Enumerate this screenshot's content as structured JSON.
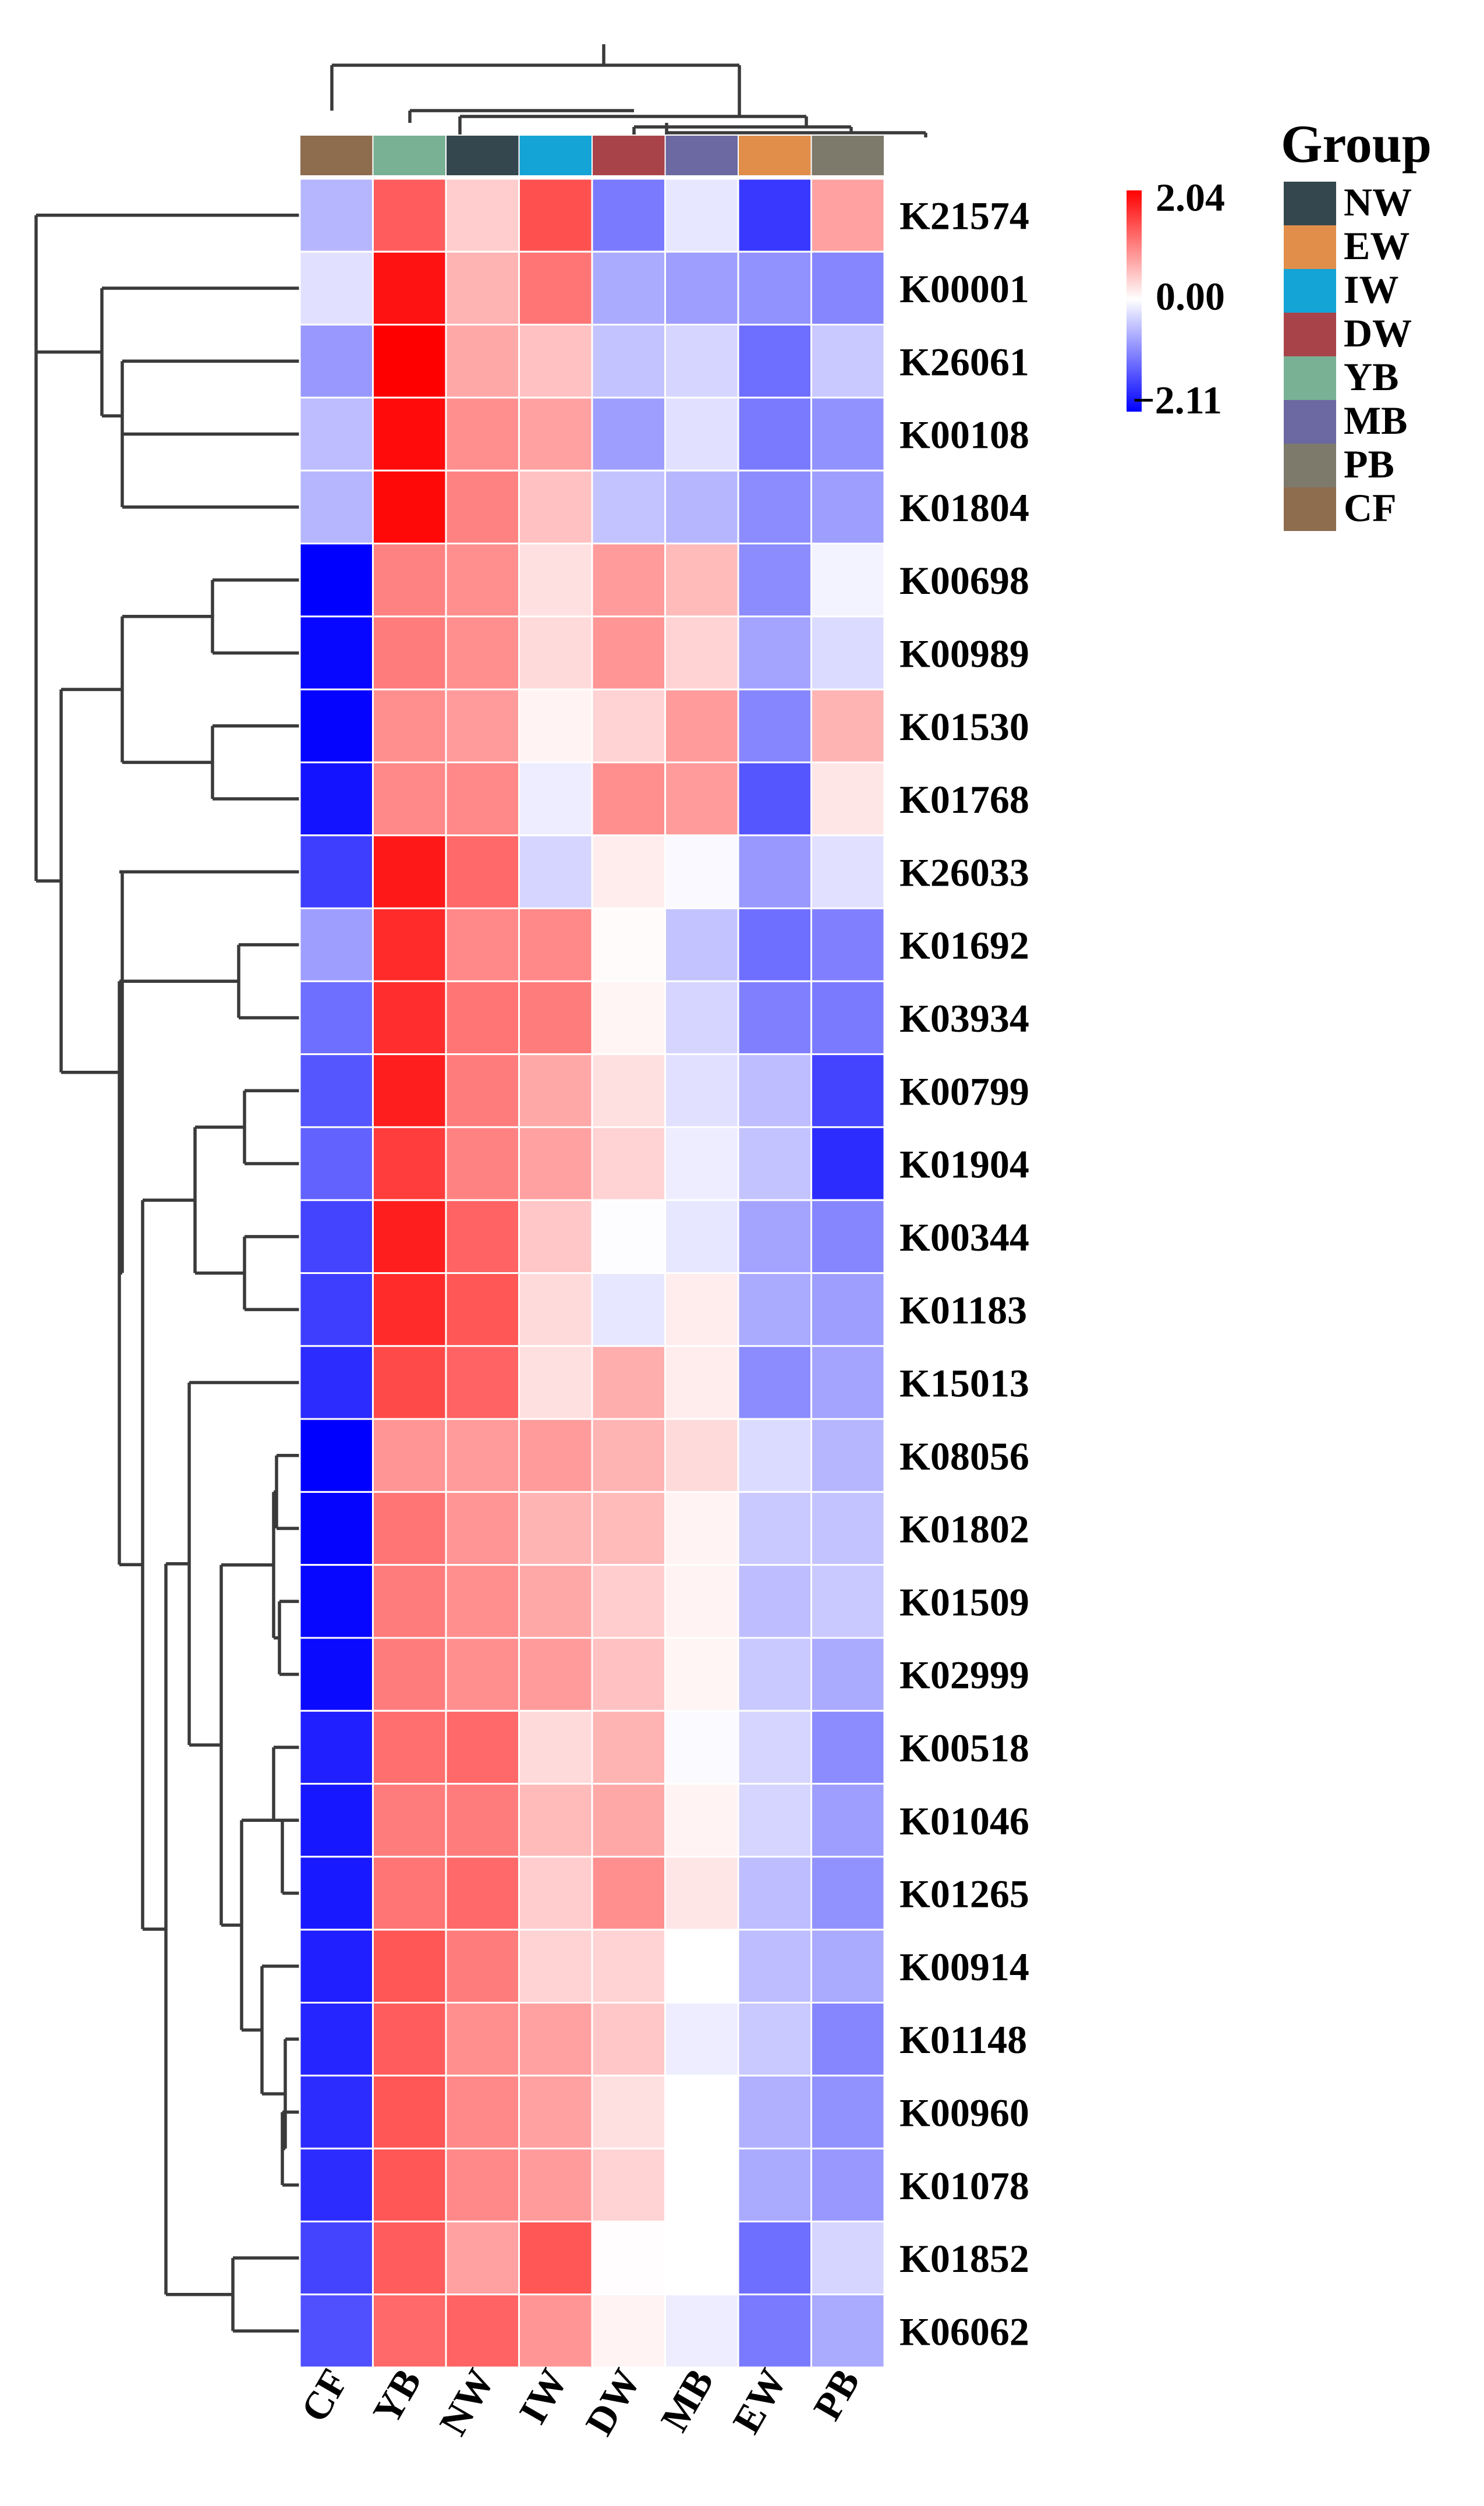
{
  "chart_data": {
    "type": "heatmap",
    "title": "",
    "columns": [
      "CF",
      "YB",
      "NW",
      "IW",
      "DW",
      "MB",
      "EW",
      "PB"
    ],
    "rows": [
      "K21574",
      "K00001",
      "K26061",
      "K00108",
      "K01804",
      "K00698",
      "K00989",
      "K01530",
      "K01768",
      "K26033",
      "K01692",
      "K03934",
      "K00799",
      "K01904",
      "K00344",
      "K01183",
      "K15013",
      "K08056",
      "K01802",
      "K01509",
      "K02999",
      "K00518",
      "K01046",
      "K01265",
      "K00914",
      "K01148",
      "K00960",
      "K01078",
      "K01852",
      "K06062"
    ],
    "values": [
      [
        -0.6,
        1.3,
        0.4,
        1.4,
        -1.1,
        -0.2,
        -1.65,
        0.75
      ],
      [
        -0.25,
        1.9,
        0.6,
        1.1,
        -0.7,
        -0.8,
        -0.9,
        -1.0
      ],
      [
        -0.85,
        2.04,
        0.7,
        0.5,
        -0.5,
        -0.35,
        -1.2,
        -0.45
      ],
      [
        -0.55,
        1.95,
        0.9,
        0.75,
        -0.8,
        -0.25,
        -1.1,
        -0.9
      ],
      [
        -0.6,
        1.98,
        1.0,
        0.5,
        -0.5,
        -0.6,
        -0.95,
        -0.8
      ],
      [
        -2.11,
        1.0,
        0.9,
        0.25,
        0.8,
        0.55,
        -0.95,
        -0.1
      ],
      [
        -2.05,
        1.05,
        0.9,
        0.3,
        0.85,
        0.35,
        -0.75,
        -0.3
      ],
      [
        -2.08,
        0.9,
        0.8,
        0.1,
        0.35,
        0.8,
        -1.0,
        0.6
      ],
      [
        -1.95,
        0.95,
        0.95,
        -0.15,
        0.9,
        0.8,
        -1.4,
        0.2
      ],
      [
        -1.6,
        1.85,
        1.2,
        -0.35,
        0.15,
        -0.05,
        -0.85,
        -0.25
      ],
      [
        -0.8,
        1.7,
        0.95,
        0.95,
        0.03,
        -0.5,
        -1.2,
        -1.05
      ],
      [
        -1.2,
        1.68,
        1.1,
        1.05,
        0.08,
        -0.35,
        -1.05,
        -1.1
      ],
      [
        -1.4,
        1.8,
        1.05,
        0.7,
        0.25,
        -0.25,
        -0.55,
        -1.55
      ],
      [
        -1.3,
        1.55,
        1.0,
        0.75,
        0.35,
        -0.15,
        -0.5,
        -1.75
      ],
      [
        -1.55,
        1.8,
        1.25,
        0.45,
        -0.02,
        -0.2,
        -0.75,
        -1.0
      ],
      [
        -1.6,
        1.7,
        1.35,
        0.3,
        -0.2,
        0.15,
        -0.7,
        -0.8
      ],
      [
        -1.75,
        1.45,
        1.25,
        0.25,
        0.65,
        0.15,
        -0.95,
        -0.75
      ],
      [
        -2.11,
        0.85,
        0.8,
        0.8,
        0.6,
        0.3,
        -0.3,
        -0.6
      ],
      [
        -2.08,
        1.1,
        0.85,
        0.6,
        0.55,
        0.1,
        -0.45,
        -0.5
      ],
      [
        -2.05,
        1.05,
        0.9,
        0.7,
        0.4,
        0.1,
        -0.55,
        -0.45
      ],
      [
        -2.03,
        1.05,
        0.9,
        0.8,
        0.5,
        0.08,
        -0.45,
        -0.7
      ],
      [
        -1.85,
        1.15,
        1.2,
        0.3,
        0.6,
        -0.03,
        -0.35,
        -0.95
      ],
      [
        -1.92,
        1.05,
        1.05,
        0.55,
        0.7,
        0.1,
        -0.35,
        -0.8
      ],
      [
        -1.9,
        1.1,
        1.2,
        0.4,
        0.9,
        0.2,
        -0.55,
        -0.9
      ],
      [
        -1.85,
        1.35,
        1.05,
        0.35,
        0.35,
        0.0,
        -0.55,
        -0.7
      ],
      [
        -1.8,
        1.3,
        0.9,
        0.75,
        0.45,
        -0.15,
        -0.45,
        -1.0
      ],
      [
        -1.75,
        1.35,
        0.95,
        0.75,
        0.25,
        0.0,
        -0.65,
        -0.9
      ],
      [
        -1.75,
        1.35,
        0.95,
        0.8,
        0.35,
        0.0,
        -0.7,
        -0.85
      ],
      [
        -1.55,
        1.3,
        0.75,
        1.35,
        0.02,
        0.0,
        -1.2,
        -0.35
      ],
      [
        -1.45,
        1.2,
        1.25,
        0.85,
        0.1,
        -0.15,
        -1.1,
        -0.7
      ]
    ],
    "colorbar": {
      "min": -2.11,
      "mid": 0.0,
      "max": 2.04,
      "min_label": "−2.11",
      "mid_label": "0.00",
      "max_label": "2.04",
      "low_color": "#0000ff",
      "mid_color": "#ffffff",
      "high_color": "#ff0000"
    },
    "legend": {
      "title": "Group",
      "position": "top-right",
      "items": [
        {
          "label": "NW",
          "color": "#34474e"
        },
        {
          "label": "EW",
          "color": "#e08e4a"
        },
        {
          "label": "IW",
          "color": "#14a4d6"
        },
        {
          "label": "DW",
          "color": "#a84449"
        },
        {
          "label": "YB",
          "color": "#79b194"
        },
        {
          "label": "MB",
          "color": "#6c68a1"
        },
        {
          "label": "PB",
          "color": "#7d7a6c"
        },
        {
          "label": "CF",
          "color": "#8e6c4e"
        }
      ]
    },
    "column_dendrogram": true,
    "row_dendrogram": true
  }
}
